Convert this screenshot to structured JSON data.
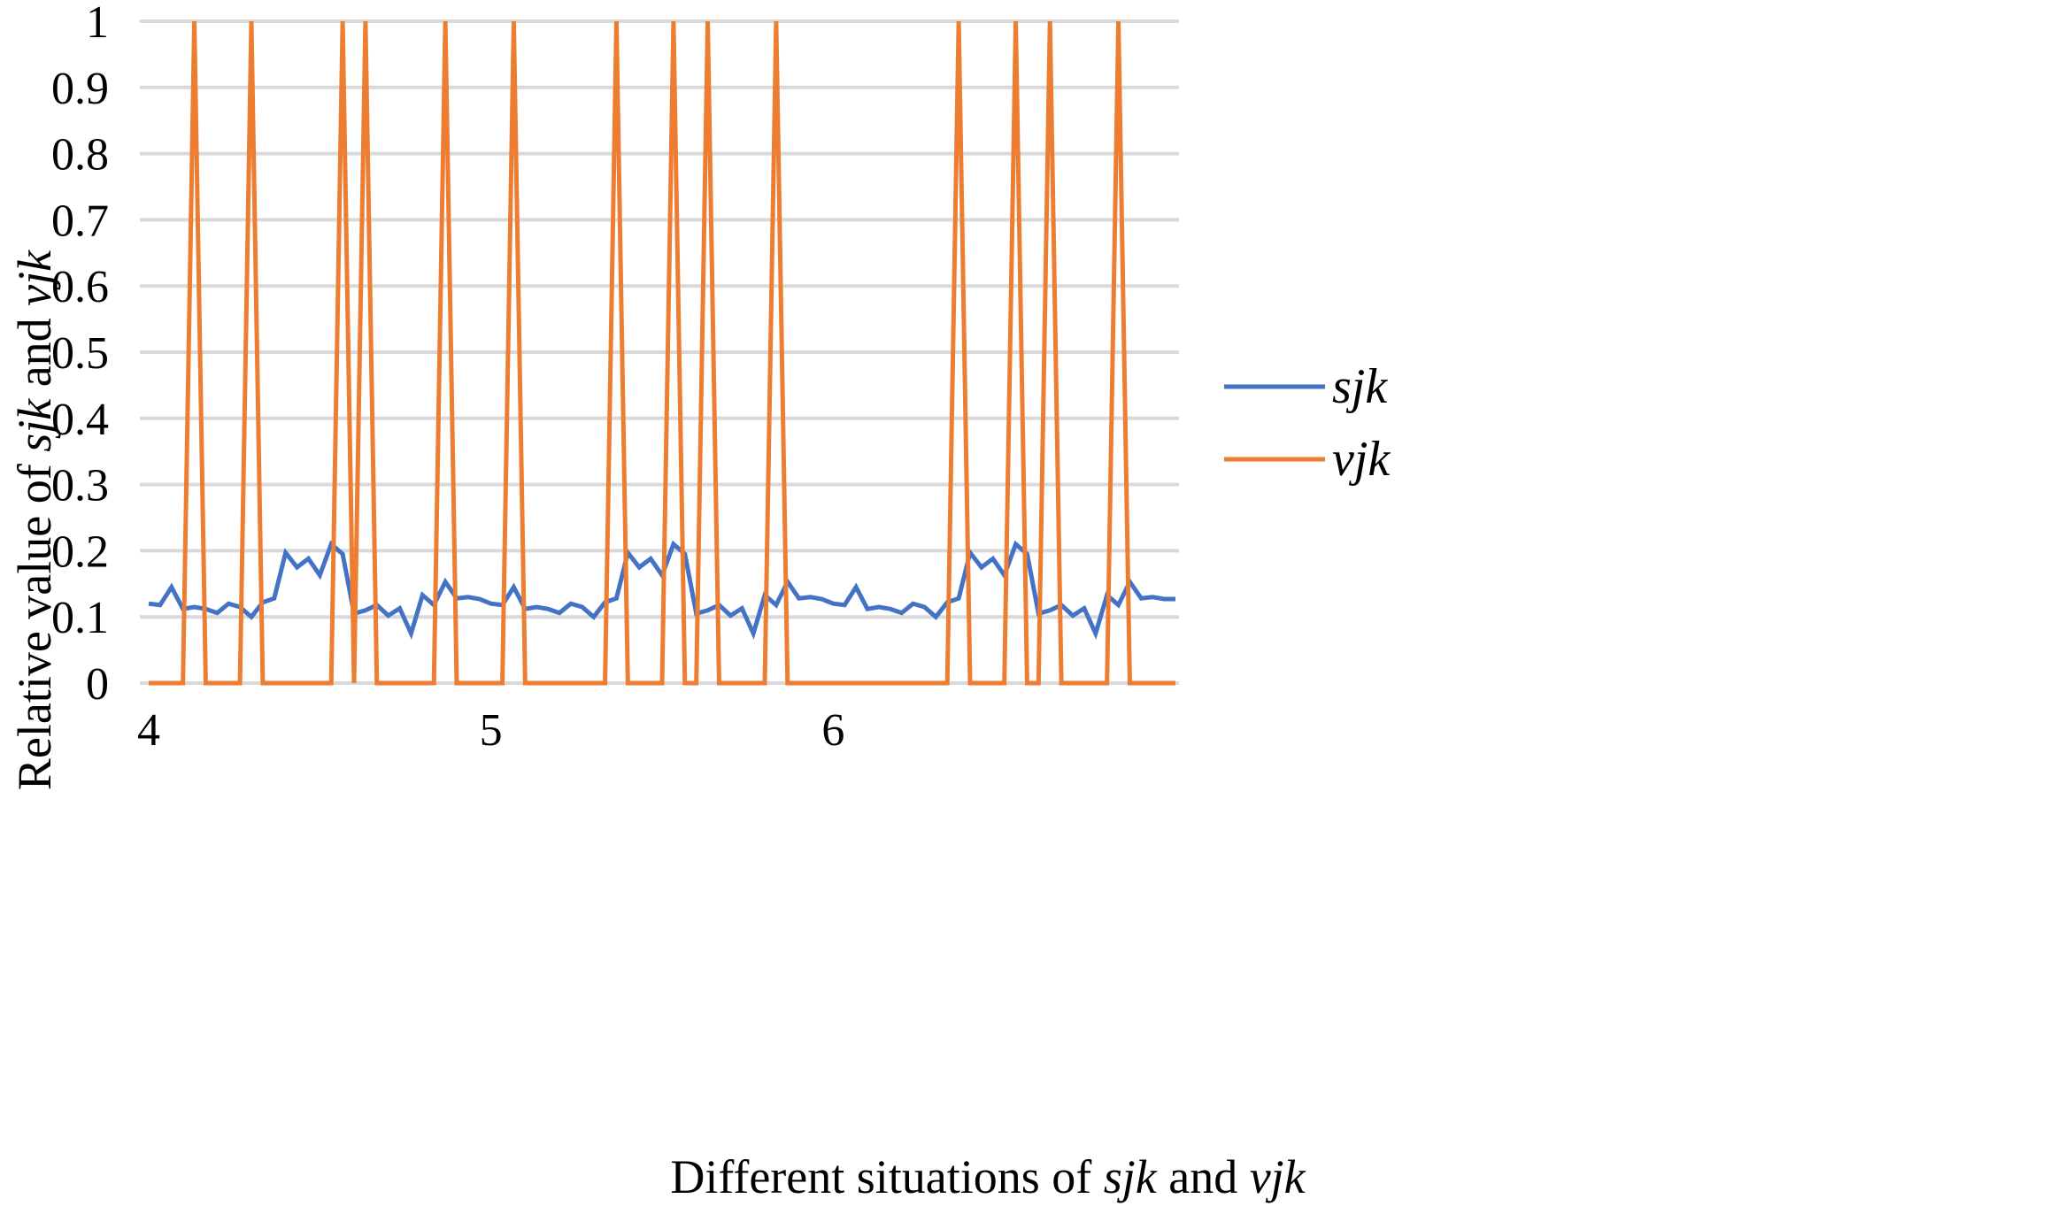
{
  "chart_data": {
    "type": "line",
    "xlabel_parts": [
      {
        "text": "Different situations of ",
        "italic": false
      },
      {
        "text": "sjk",
        "italic": true
      },
      {
        "text": " and ",
        "italic": false
      },
      {
        "text": "vjk",
        "italic": true
      }
    ],
    "ylabel_parts": [
      {
        "text": "Relative value of ",
        "italic": false
      },
      {
        "text": "sjk",
        "italic": true
      },
      {
        "text": " and ",
        "italic": false
      },
      {
        "text": "vjk",
        "italic": true
      }
    ],
    "ylim": [
      0,
      1
    ],
    "yticks": [
      "0",
      "0.1",
      "0.2",
      "0.3",
      "0.4",
      "0.5",
      "0.6",
      "0.7",
      "0.8",
      "0.9",
      "1"
    ],
    "x_tick_labels": [
      {
        "label": "4",
        "index": 0
      },
      {
        "label": "5",
        "index": 30
      },
      {
        "label": "6",
        "index": 60
      }
    ],
    "n_points": 91,
    "grid": true,
    "legend_position": "right",
    "series": [
      {
        "name": "sjk",
        "color": "#4472c4",
        "values": [
          0.12,
          0.118,
          0.145,
          0.112,
          0.115,
          0.112,
          0.106,
          0.12,
          0.115,
          0.1,
          0.122,
          0.128,
          0.197,
          0.175,
          0.188,
          0.163,
          0.21,
          0.195,
          0.105,
          0.11,
          0.118,
          0.102,
          0.113,
          0.075,
          0.133,
          0.118,
          0.153,
          0.128,
          0.13,
          0.127,
          0.12,
          0.118,
          0.145,
          0.112,
          0.115,
          0.112,
          0.106,
          0.12,
          0.115,
          0.1,
          0.122,
          0.128,
          0.197,
          0.175,
          0.188,
          0.163,
          0.21,
          0.195,
          0.105,
          0.11,
          0.118,
          0.102,
          0.113,
          0.075,
          0.133,
          0.118,
          0.153,
          0.128,
          0.13,
          0.127,
          0.12,
          0.118,
          0.145,
          0.112,
          0.115,
          0.112,
          0.106,
          0.12,
          0.115,
          0.1,
          0.122,
          0.128,
          0.197,
          0.175,
          0.188,
          0.163,
          0.21,
          0.195,
          0.105,
          0.11,
          0.118,
          0.102,
          0.113,
          0.075,
          0.133,
          0.118,
          0.153,
          0.128,
          0.13,
          0.127,
          0.127
        ]
      },
      {
        "name": "vjk",
        "color": "#ed7d31",
        "values": [
          0,
          0,
          0,
          0,
          1,
          0,
          0,
          0,
          0,
          1,
          0,
          0,
          0,
          0,
          0,
          0,
          0,
          1,
          0,
          1,
          0,
          0,
          0,
          0,
          0,
          0,
          1,
          0,
          0,
          0,
          0,
          0,
          1,
          0,
          0,
          0,
          0,
          0,
          0,
          0,
          0,
          1,
          0,
          0,
          0,
          0,
          1,
          0,
          0,
          1,
          0,
          0,
          0,
          0,
          0,
          1,
          0,
          0,
          0,
          0,
          0,
          0,
          0,
          0,
          0,
          0,
          0,
          0,
          0,
          0,
          0,
          1,
          0,
          0,
          0,
          0,
          1,
          0,
          0,
          1,
          0,
          0,
          0,
          0,
          0,
          1,
          0,
          0,
          0,
          0,
          0
        ]
      }
    ]
  }
}
